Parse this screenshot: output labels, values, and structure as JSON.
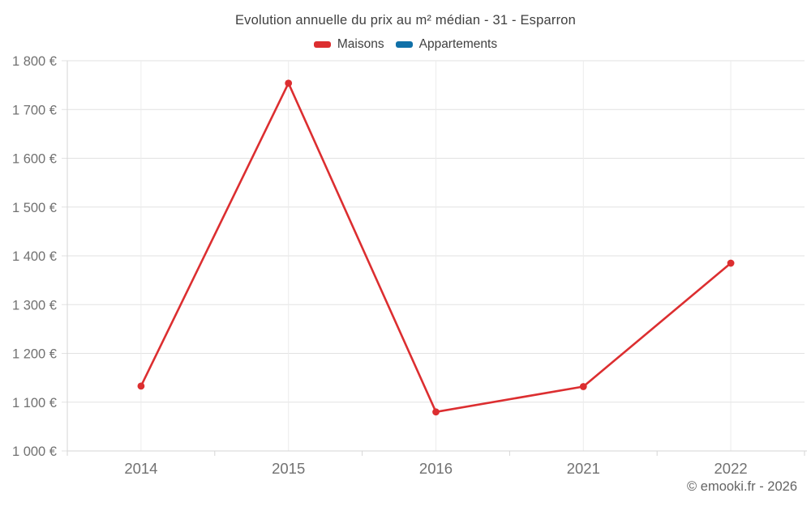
{
  "page": {
    "title": "Evolution annuelle du prix au m² médian - 31 - Esparron",
    "copyright": "© emooki.fr - 2026"
  },
  "legend": {
    "items": [
      {
        "label": "Maisons",
        "color": "#dc2e30"
      },
      {
        "label": "Appartements",
        "color": "#1070a8"
      }
    ]
  },
  "chart_data": {
    "type": "line",
    "title": "Evolution annuelle du prix au m² médian - 31 - Esparron",
    "categories": [
      "2014",
      "2015",
      "2016",
      "2021",
      "2022"
    ],
    "series": [
      {
        "name": "Maisons",
        "color": "#dc2e30",
        "values": [
          1133,
          1754,
          1080,
          1132,
          1385
        ]
      },
      {
        "name": "Appartements",
        "color": "#1070a8",
        "values": []
      }
    ],
    "xlabel": "",
    "ylabel": "",
    "ylim": [
      1000,
      1800
    ],
    "ytick_step": 100,
    "y_tick_labels": [
      "1 000 €",
      "1 100 €",
      "1 200 €",
      "1 300 €",
      "1 400 €",
      "1 500 €",
      "1 600 €",
      "1 700 €",
      "1 800 €"
    ],
    "grid": true,
    "legend_position": "top",
    "style": {
      "h_grid_color": "#e2e2e2",
      "v_grid_color": "#ececec",
      "axis_color": "#d6d6d6",
      "label_color": "#717171",
      "line_width": 2.6,
      "marker_radius": 4.4
    }
  }
}
